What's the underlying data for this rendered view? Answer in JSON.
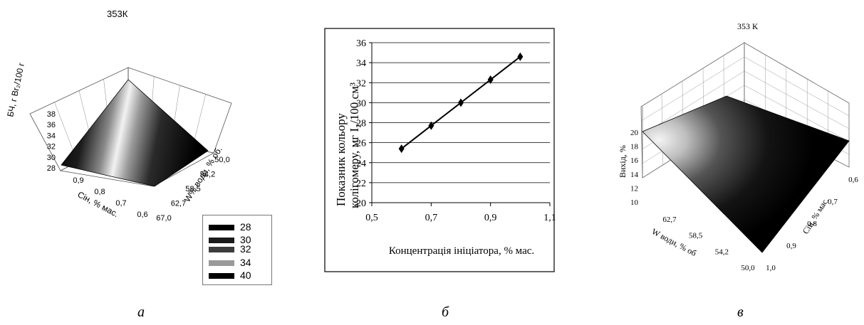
{
  "chart_data": [
    {
      "panel_caption": "а",
      "type": "surface",
      "title": "353К",
      "zlabel": "БЧ, г Br₂/100 г",
      "xlabel": "Сін, % мас.",
      "ylabel": "W% води, % об.",
      "z_ticks": [
        "28",
        "30",
        "32",
        "34",
        "36",
        "38"
      ],
      "x_ticks": [
        "0,9",
        "0,8",
        "0,7",
        "0,6"
      ],
      "y_ticks": [
        "50,0",
        "54,2",
        "58,5",
        "62,7",
        "67,0"
      ],
      "legend": {
        "placement": "bottom-right",
        "entries": [
          {
            "label": "28",
            "color": "#000000"
          },
          {
            "label": "30",
            "color": "#1a1a1a"
          },
          {
            "label": "32",
            "color": "#3c3c3c"
          },
          {
            "label": "34",
            "color": "#9a9a9a"
          },
          {
            "label": "40",
            "color": "#000000"
          }
        ]
      }
    },
    {
      "panel_caption": "б",
      "type": "line",
      "xlabel": "Концентрація ініціатора, % мас.",
      "ylabel_line1": "Показник кольору",
      "ylabel_line2": "колігомеру, мг I₂/100 см³",
      "xlim": [
        0.5,
        1.1
      ],
      "ylim": [
        20,
        36
      ],
      "x_ticks": [
        0.5,
        0.7,
        0.9,
        1.1
      ],
      "x_tick_labels": [
        "0,5",
        "0,7",
        "0,9",
        "1,1"
      ],
      "y_ticks": [
        20,
        22,
        24,
        26,
        28,
        30,
        32,
        34,
        36
      ],
      "grid": "horizontal",
      "marker": "diamond",
      "series": [
        {
          "x": [
            0.6,
            0.7,
            0.8,
            0.9,
            1.0
          ],
          "y": [
            25.4,
            27.7,
            30.0,
            32.3,
            34.6
          ]
        }
      ]
    },
    {
      "panel_caption": "в",
      "type": "surface",
      "title": "353 К",
      "zlabel": "Вихід, %",
      "xlabel": "W води, % об",
      "ylabel": "Сін, % мас.",
      "z_ticks": [
        "10",
        "12",
        "14",
        "16",
        "18",
        "20"
      ],
      "x_ticks": [
        "62,7",
        "58,5",
        "54,2",
        "50,0"
      ],
      "y_ticks": [
        "1,0",
        "0,9",
        "0,8",
        "0,7",
        "0,6"
      ]
    }
  ]
}
